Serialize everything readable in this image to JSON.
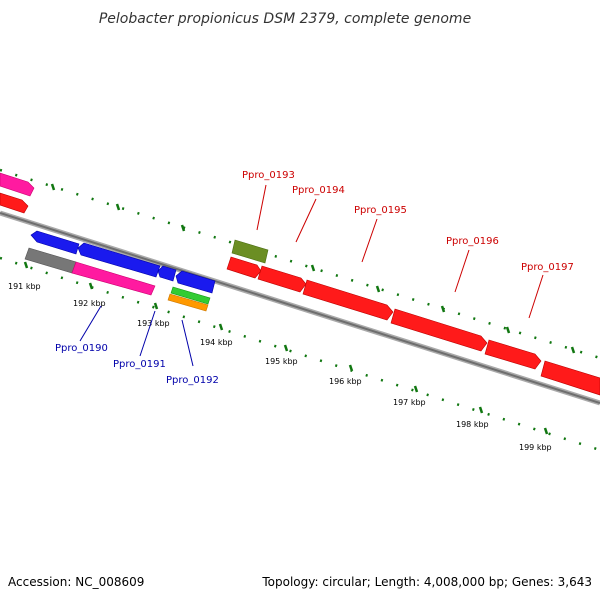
{
  "title": "Pelobacter propionicus DSM 2379, complete genome",
  "footer": {
    "accession": "Accession: NC_008609",
    "summary": "Topology: circular; Length: 4,008,000 bp; Genes: 3,643"
  },
  "colors": {
    "red": "#ff1a1a",
    "blue": "#1a1aee",
    "magenta": "#ff1aa0",
    "olive": "#6b8e23",
    "gray": "#777777",
    "green": "#33cc33",
    "orange": "#ff9900",
    "label_red": "#cc0000",
    "label_blue": "#0000aa",
    "tick_green": "#117711"
  },
  "tick_labels": [
    "191 kbp",
    "192 kbp",
    "193 kbp",
    "194 kbp",
    "195 kbp",
    "196 kbp",
    "197 kbp",
    "198 kbp",
    "199 kbp"
  ],
  "genes_forward": [
    {
      "label": "Ppro_0193",
      "color": "olive"
    },
    {
      "label": "Ppro_0194",
      "color": "red"
    },
    {
      "label": "Ppro_0195",
      "color": "red"
    },
    {
      "label": "Ppro_0196",
      "color": "red"
    },
    {
      "label": "Ppro_0197",
      "color": "red"
    }
  ],
  "genes_reverse": [
    {
      "label": "Ppro_0190",
      "color": "magenta"
    },
    {
      "label": "Ppro_0191",
      "color": "blue"
    },
    {
      "label": "Ppro_0192",
      "color": "green"
    }
  ]
}
